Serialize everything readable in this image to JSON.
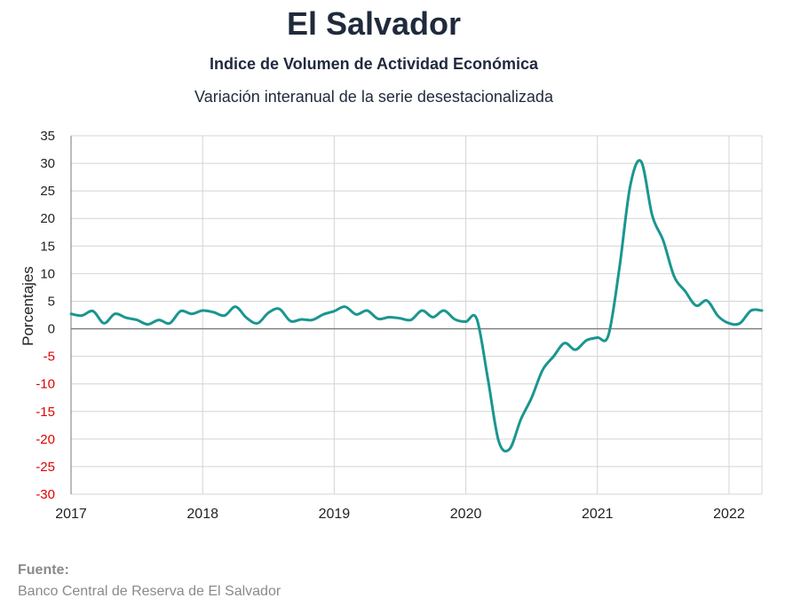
{
  "header": {
    "title": "El Salvador",
    "subtitle": "Indice de Volumen de  Actividad Económica",
    "description": "Variación interanual de la serie desestacionalizada"
  },
  "footer": {
    "source_label": "Fuente:",
    "source_text": "Banco Central de Reserva de El Salvador"
  },
  "colors": {
    "line": "#1a9690",
    "grid": "#d4d4d4",
    "zero_line": "#7a7a7a",
    "negative_tick": "#e00000",
    "text": "#222222"
  },
  "chart_data": {
    "type": "line",
    "ylabel": "Porcentajes",
    "xlabel": "",
    "ylim": [
      -30,
      35
    ],
    "yticks": [
      35,
      30,
      25,
      20,
      15,
      10,
      5,
      0,
      -5,
      -10,
      -15,
      -20,
      -25,
      -30
    ],
    "xlim": [
      2017.0,
      2022.25
    ],
    "xticks": [
      "2017",
      "2018",
      "2019",
      "2020",
      "2021",
      "2022"
    ],
    "grid": true,
    "series": [
      {
        "x": [
          2017.0,
          2017.083,
          2017.167,
          2017.25,
          2017.333,
          2017.417,
          2017.5,
          2017.583,
          2017.667,
          2017.75,
          2017.833,
          2017.917,
          2018.0,
          2018.083,
          2018.167,
          2018.25,
          2018.333,
          2018.417,
          2018.5,
          2018.583,
          2018.667,
          2018.75,
          2018.833,
          2018.917,
          2019.0,
          2019.083,
          2019.167,
          2019.25,
          2019.333,
          2019.417,
          2019.5,
          2019.583,
          2019.667,
          2019.75,
          2019.833,
          2019.917,
          2020.0,
          2020.083,
          2020.167,
          2020.25,
          2020.333,
          2020.417,
          2020.5,
          2020.583,
          2020.667,
          2020.75,
          2020.833,
          2020.917,
          2021.0,
          2021.083,
          2021.167,
          2021.25,
          2021.333,
          2021.417,
          2021.5,
          2021.583,
          2021.667,
          2021.75,
          2021.833,
          2021.917,
          2022.0,
          2022.083,
          2022.167,
          2022.25
        ],
        "values": [
          2.7,
          2.4,
          3.2,
          1.0,
          2.7,
          2.0,
          1.6,
          0.8,
          1.6,
          1.0,
          3.2,
          2.7,
          3.3,
          3.0,
          2.4,
          4.0,
          2.0,
          1.0,
          2.9,
          3.6,
          1.4,
          1.7,
          1.6,
          2.6,
          3.2,
          4.0,
          2.6,
          3.3,
          1.8,
          2.1,
          1.9,
          1.6,
          3.3,
          2.1,
          3.3,
          1.7,
          1.3,
          1.8,
          -9.0,
          -20.4,
          -21.8,
          -16.5,
          -12.5,
          -7.5,
          -5.0,
          -2.6,
          -3.8,
          -2.1,
          -1.6,
          -1.2,
          11.0,
          26.0,
          30.3,
          20.5,
          16.0,
          9.5,
          6.8,
          4.2,
          5.1,
          2.3,
          1.0,
          1.0,
          3.3,
          3.3
        ]
      }
    ]
  }
}
